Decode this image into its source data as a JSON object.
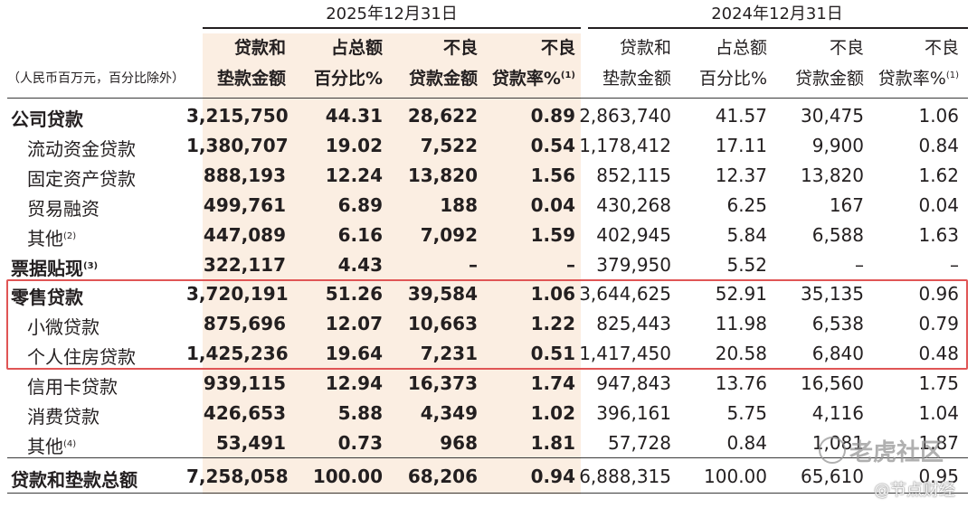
{
  "periods": [
    "2025年12月31日",
    "2024年12月31日"
  ],
  "unit_note": "（人民币百万元，百分比除外）",
  "columns": [
    [
      "贷款和",
      "垫款金额"
    ],
    [
      "占总额",
      "百分比%"
    ],
    [
      "不良",
      "贷款金额"
    ],
    [
      "不良",
      "贷款率%"
    ]
  ],
  "npl_rate_note": "(1)",
  "rows": [
    {
      "label": "公司贷款",
      "note": "",
      "bold": true,
      "sub": false,
      "v": [
        "3,215,750",
        "44.31",
        "28,622",
        "0.89",
        "2,863,740",
        "41.57",
        "30,475",
        "1.06"
      ]
    },
    {
      "label": "流动资金贷款",
      "note": "",
      "bold": false,
      "sub": true,
      "v": [
        "1,380,707",
        "19.02",
        "7,522",
        "0.54",
        "1,178,412",
        "17.11",
        "9,900",
        "0.84"
      ]
    },
    {
      "label": "固定资产贷款",
      "note": "",
      "bold": false,
      "sub": true,
      "v": [
        "888,193",
        "12.24",
        "13,820",
        "1.56",
        "852,115",
        "12.37",
        "13,820",
        "1.62"
      ]
    },
    {
      "label": "贸易融资",
      "note": "",
      "bold": false,
      "sub": true,
      "v": [
        "499,761",
        "6.89",
        "188",
        "0.04",
        "430,268",
        "6.25",
        "167",
        "0.04"
      ]
    },
    {
      "label": "其他",
      "note": "(2)",
      "bold": false,
      "sub": true,
      "v": [
        "447,089",
        "6.16",
        "7,092",
        "1.59",
        "402,945",
        "5.84",
        "6,588",
        "1.63"
      ]
    },
    {
      "label": "票据贴现",
      "note": "(3)",
      "bold": true,
      "sub": false,
      "v": [
        "322,117",
        "4.43",
        "–",
        "–",
        "379,950",
        "5.52",
        "–",
        "–"
      ]
    },
    {
      "label": "零售贷款",
      "note": "",
      "bold": true,
      "sub": false,
      "v": [
        "3,720,191",
        "51.26",
        "39,584",
        "1.06",
        "3,644,625",
        "52.91",
        "35,135",
        "0.96"
      ]
    },
    {
      "label": "小微贷款",
      "note": "",
      "bold": false,
      "sub": true,
      "v": [
        "875,696",
        "12.07",
        "10,663",
        "1.22",
        "825,443",
        "11.98",
        "6,538",
        "0.79"
      ]
    },
    {
      "label": "个人住房贷款",
      "note": "",
      "bold": false,
      "sub": true,
      "v": [
        "1,425,236",
        "19.64",
        "7,231",
        "0.51",
        "1,417,450",
        "20.58",
        "6,840",
        "0.48"
      ]
    },
    {
      "label": "信用卡贷款",
      "note": "",
      "bold": false,
      "sub": true,
      "v": [
        "939,115",
        "12.94",
        "16,373",
        "1.74",
        "947,843",
        "13.76",
        "16,560",
        "1.75"
      ]
    },
    {
      "label": "消费贷款",
      "note": "",
      "bold": false,
      "sub": true,
      "v": [
        "426,653",
        "5.88",
        "4,349",
        "1.02",
        "396,161",
        "5.75",
        "4,116",
        "1.04"
      ]
    },
    {
      "label": "其他",
      "note": "(4)",
      "bold": false,
      "sub": true,
      "v": [
        "53,491",
        "0.73",
        "968",
        "1.81",
        "57,728",
        "0.84",
        "1,081",
        "1.87"
      ]
    },
    {
      "label": "贷款和垫款总额",
      "note": "",
      "bold": true,
      "sub": false,
      "v": [
        "7,258,058",
        "100.00",
        "68,206",
        "0.94",
        "6,888,315",
        "100.00",
        "65,610",
        "0.95"
      ]
    }
  ],
  "watermarks": [
    "老虎社区",
    "@节点财经"
  ]
}
